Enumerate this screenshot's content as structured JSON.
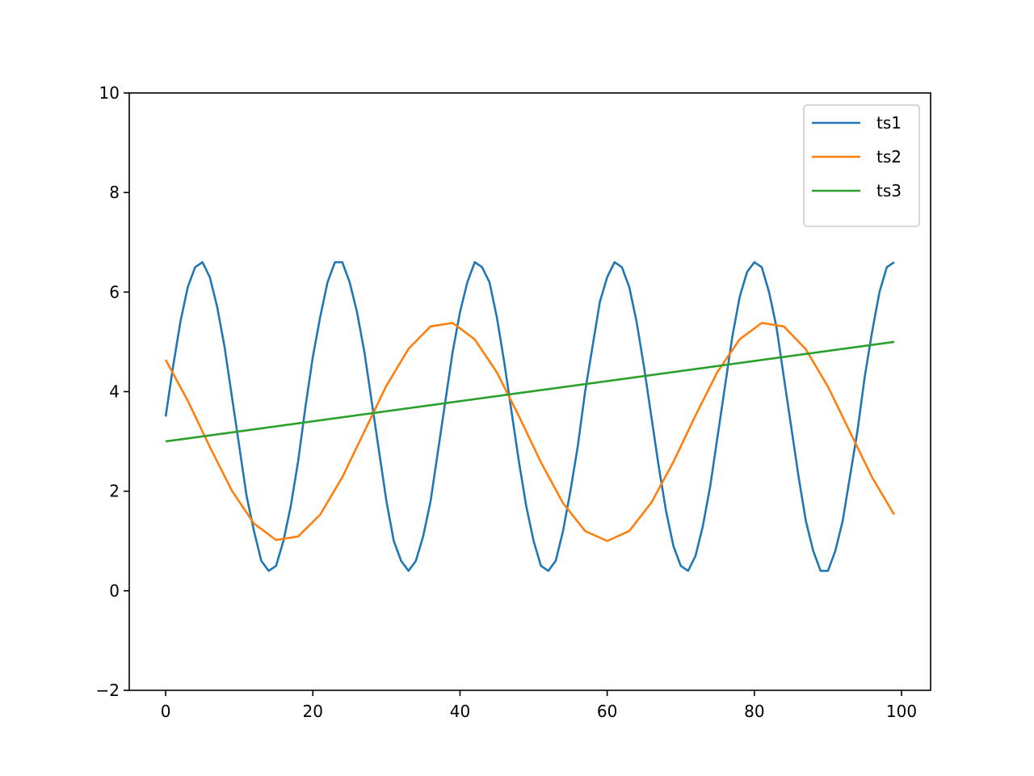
{
  "chart_data": {
    "type": "line",
    "xlim": [
      -4.95,
      103.95
    ],
    "ylim": [
      -2,
      10
    ],
    "xticks": [
      0,
      20,
      40,
      60,
      80,
      100
    ],
    "yticks": [
      {
        "value": -2,
        "label": "−2"
      },
      0,
      2,
      4,
      6,
      8,
      10
    ],
    "legend": "upper right",
    "series": [
      {
        "name": "ts1",
        "color": "#1f77b4",
        "x": [
          0,
          1,
          2,
          3,
          4,
          5,
          6,
          7,
          8,
          9,
          10,
          11,
          12,
          13,
          14,
          15,
          16,
          17,
          18,
          19,
          20,
          21,
          22,
          23,
          24,
          25,
          26,
          27,
          28,
          29,
          30,
          31,
          32,
          33,
          34,
          35,
          36,
          37,
          38,
          39,
          40,
          41,
          42,
          43,
          44,
          45,
          46,
          47,
          48,
          49,
          50,
          51,
          52,
          53,
          54,
          55,
          56,
          57,
          58,
          59,
          60,
          61,
          62,
          63,
          64,
          65,
          66,
          67,
          68,
          69,
          70,
          71,
          72,
          73,
          74,
          75,
          76,
          77,
          78,
          79,
          80,
          81,
          82,
          83,
          84,
          85,
          86,
          87,
          88,
          89,
          90,
          91,
          92,
          93,
          94,
          95,
          96,
          97,
          98,
          99
        ],
        "values": [
          3.5,
          4.5,
          5.4,
          6.1,
          6.5,
          6.6,
          6.3,
          5.7,
          4.9,
          3.9,
          2.9,
          1.9,
          1.2,
          0.6,
          0.4,
          0.5,
          1.0,
          1.7,
          2.6,
          3.7,
          4.7,
          5.5,
          6.2,
          6.6,
          6.6,
          6.2,
          5.6,
          4.8,
          3.8,
          2.8,
          1.8,
          1.0,
          0.6,
          0.4,
          0.6,
          1.1,
          1.8,
          2.8,
          3.8,
          4.8,
          5.6,
          6.2,
          6.6,
          6.5,
          6.2,
          5.5,
          4.6,
          3.6,
          2.6,
          1.7,
          1.0,
          0.5,
          0.4,
          0.6,
          1.2,
          2.0,
          2.9,
          4.0,
          4.9,
          5.8,
          6.3,
          6.6,
          6.5,
          6.1,
          5.4,
          4.5,
          3.5,
          2.5,
          1.6,
          0.9,
          0.5,
          0.4,
          0.7,
          1.3,
          2.1,
          3.1,
          4.1,
          5.1,
          5.9,
          6.4,
          6.6,
          6.5,
          6.0,
          5.3,
          4.3,
          3.3,
          2.3,
          1.4,
          0.8,
          0.4,
          0.4,
          0.8,
          1.4,
          2.3,
          3.2,
          4.3,
          5.2,
          6.0,
          6.5,
          6.6
        ]
      },
      {
        "name": "ts2",
        "color": "#ff7f0e",
        "x": [
          0,
          3,
          6,
          9,
          12,
          15,
          18,
          21,
          24,
          27,
          30,
          33,
          36,
          39,
          42,
          45,
          48,
          51,
          54,
          57,
          60,
          63,
          66,
          69,
          72,
          75,
          78,
          81,
          84,
          87,
          90,
          93,
          96,
          99
        ],
        "values": [
          4.64,
          3.82,
          2.89,
          2.01,
          1.35,
          1.02,
          1.09,
          1.53,
          2.28,
          3.2,
          4.12,
          4.86,
          5.31,
          5.38,
          5.05,
          4.39,
          3.51,
          2.58,
          1.76,
          1.2,
          1.0,
          1.2,
          1.77,
          2.59,
          3.52,
          4.4,
          5.05,
          5.38,
          5.31,
          4.85,
          4.1,
          3.19,
          2.28,
          1.53
        ]
      },
      {
        "name": "ts3",
        "color": "#2ca02c",
        "x": [
          0,
          99
        ],
        "values": [
          3,
          5
        ]
      }
    ]
  }
}
